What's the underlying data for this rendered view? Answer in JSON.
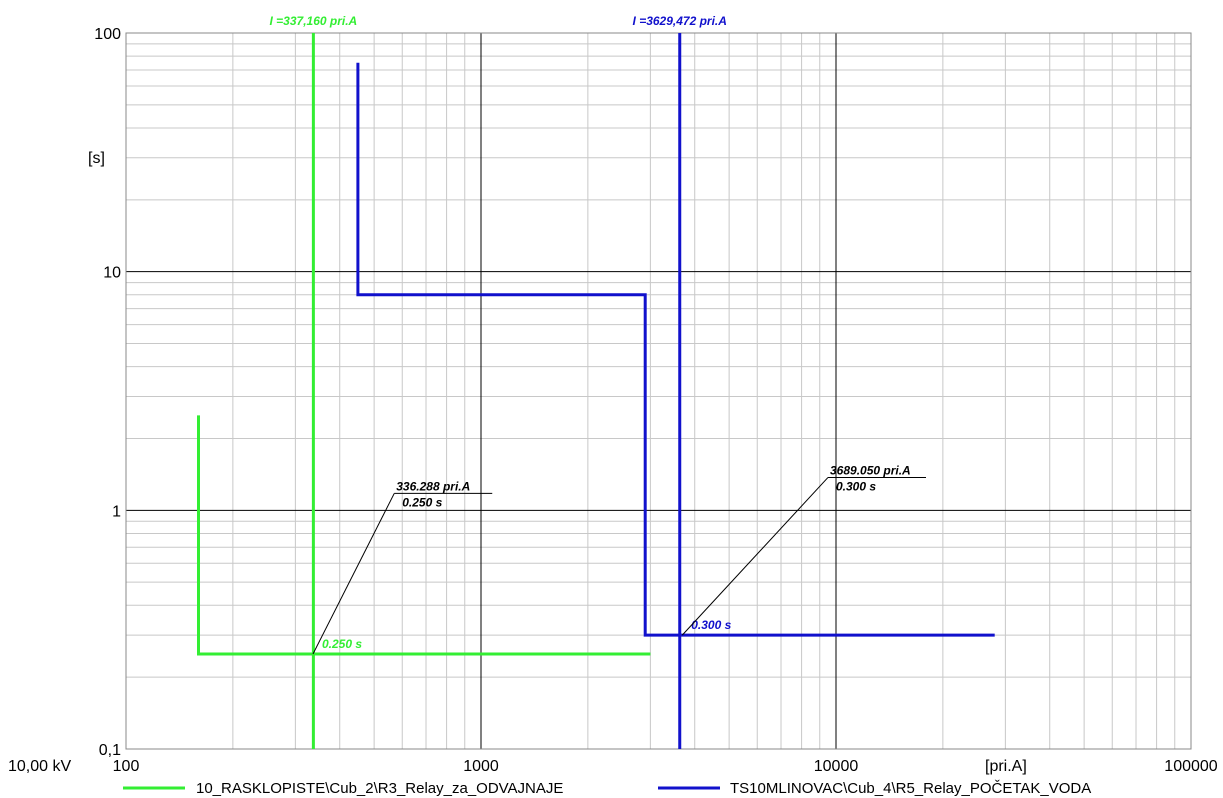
{
  "chart_data": {
    "type": "line",
    "x_scale": "log",
    "y_scale": "log",
    "xlim": [
      100,
      100000
    ],
    "ylim": [
      0.1,
      100
    ],
    "x_ticks": [
      "100",
      "1000",
      "10000",
      "100000"
    ],
    "y_ticks": [
      "100",
      "10",
      "1",
      "0,1"
    ],
    "xlabel": "[pri.A]",
    "ylabel": "[s]",
    "voltage_label": "10,00 kV",
    "grid": true,
    "legend_position": "bottom",
    "series": [
      {
        "name": "10_RASKLOPISTE\\Cub_2\\R3_Relay_za_ODVAJNAJE",
        "color": "#33ee33",
        "points": [
          [
            160,
            2.5
          ],
          [
            160,
            0.25
          ],
          [
            3000,
            0.25
          ]
        ]
      },
      {
        "name": "TS10MLINOVAC\\Cub_4\\R5_Relay_POČETAK_VODA",
        "color": "#1111cc",
        "points": [
          [
            450,
            75
          ],
          [
            450,
            8
          ],
          [
            2900,
            8
          ],
          [
            2900,
            0.3
          ],
          [
            28000,
            0.3
          ]
        ]
      }
    ],
    "vertical_markers": [
      {
        "x": 337.16,
        "label": "I =337,160 pri.A",
        "color": "#33ee33"
      },
      {
        "x": 3629.472,
        "label": "I =3629,472 pri.A",
        "color": "#1111cc"
      }
    ],
    "point_labels": [
      {
        "x": 336.288,
        "y": 0.25,
        "label": "0.250 s",
        "color": "#33ee33"
      },
      {
        "x": 3689.05,
        "y": 0.3,
        "label": "0.300 s",
        "color": "#1111cc"
      }
    ],
    "callouts": [
      {
        "x": 336.288,
        "y": 0.25,
        "line1": "336.288 pri.A",
        "line2": "0.250 s",
        "box_x": 600,
        "box_y": 1.2
      },
      {
        "x": 3689.05,
        "y": 0.3,
        "line1": "3689.050 pri.A",
        "line2": "0.300 s",
        "box_x": 10000,
        "box_y": 1.4
      }
    ]
  }
}
